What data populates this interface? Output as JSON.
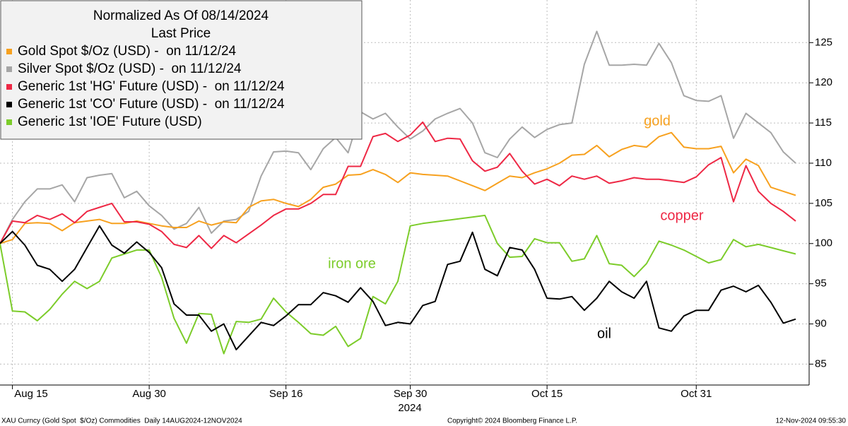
{
  "chart_data": {
    "type": "line",
    "legend_title": [
      "Normalized As Of 08/14/2024",
      "Last Price"
    ],
    "legend_position": "upper left",
    "grid": true,
    "categories": [
      null,
      "Aug 15",
      null,
      null,
      null,
      null,
      null,
      null,
      null,
      null,
      null,
      null,
      "Aug 30",
      null,
      null,
      null,
      null,
      null,
      null,
      null,
      null,
      null,
      null,
      "Sep 16",
      null,
      null,
      null,
      null,
      null,
      null,
      null,
      null,
      null,
      "Sep 30",
      null,
      null,
      null,
      null,
      null,
      null,
      null,
      null,
      null,
      null,
      "Oct 15",
      null,
      null,
      null,
      null,
      null,
      null,
      null,
      null,
      null,
      null,
      null,
      "Oct 31",
      null,
      null,
      null,
      null,
      null,
      null,
      null,
      null
    ],
    "x_year_label": "2024",
    "ylim": [
      82.4,
      130.3
    ],
    "yticks": [
      85,
      90,
      95,
      100,
      105,
      110,
      115,
      120,
      125
    ],
    "series": [
      {
        "name": "Gold Spot $/Oz (USD) -  on 11/12/24",
        "color": "#f7a11f",
        "values": [
          100,
          100.5,
          102.5,
          102.6,
          102.5,
          101.6,
          102.6,
          102.8,
          103.0,
          102.5,
          102.5,
          102.8,
          102.5,
          102.2,
          102.0,
          102.0,
          102.8,
          102.3,
          102.7,
          102.6,
          104.5,
          105.3,
          105.5,
          105.0,
          104.6,
          105.5,
          107.0,
          107.4,
          108.5,
          108.6,
          109.2,
          108.6,
          107.6,
          108.8,
          108.6,
          108.5,
          108.4,
          107.8,
          107.2,
          106.6,
          107.5,
          108.4,
          108.2,
          108.8,
          109.3,
          110.0,
          111.0,
          111.1,
          112.2,
          110.8,
          111.7,
          112.2,
          112.0,
          113.3,
          113.8,
          112.0,
          111.8,
          111.8,
          112.1,
          108.8,
          110.5,
          109.7,
          107.0,
          106.5,
          106.0
        ]
      },
      {
        "name": "Silver Spot $/Oz (USD) -  on 11/12/24",
        "color": "#a6a6a6",
        "values": [
          100,
          103,
          105.2,
          106.8,
          106.8,
          107.3,
          105.2,
          108.2,
          108.5,
          108.7,
          105.7,
          106.5,
          104.7,
          103.5,
          101.8,
          102.5,
          104.5,
          101.3,
          102.8,
          103,
          104,
          108.4,
          111.4,
          111.5,
          111.3,
          109.2,
          111.8,
          113.2,
          111.3,
          116.4,
          115.5,
          116.2,
          114.5,
          113,
          114,
          115.5,
          116.2,
          116.8,
          115,
          111.3,
          110.7,
          113,
          114.5,
          113.2,
          114.2,
          114.8,
          115,
          122.3,
          126.4,
          122.2,
          122.2,
          122.3,
          122.2,
          124.9,
          122.5,
          118.4,
          117.8,
          117.7,
          118.4,
          113.1,
          116.2,
          115,
          113.8,
          111.4,
          110.0
        ]
      },
      {
        "name": "Generic 1st 'HG' Future (USD) -  on 11/12/24",
        "color": "#ee2845",
        "values": [
          100,
          102.8,
          102.6,
          103.5,
          103,
          103.7,
          102.6,
          104,
          104.5,
          105,
          102.7,
          102.7,
          102.4,
          101.5,
          99.9,
          99.5,
          101,
          99.4,
          101,
          100.1,
          101.2,
          102.3,
          103.5,
          104.3,
          104.3,
          105.0,
          106.1,
          106.1,
          109.6,
          109.6,
          113.3,
          113.7,
          112.7,
          113.5,
          115.1,
          112.7,
          113.1,
          113,
          110.3,
          109,
          109.5,
          111.2,
          109,
          107.4,
          108,
          107.2,
          108.4,
          108,
          108.4,
          107.5,
          107.8,
          108.2,
          108.0,
          108.0,
          107.8,
          107.6,
          108.3,
          109.8,
          110.7,
          105.2,
          109.7,
          106.5,
          105,
          104,
          102.8
        ]
      },
      {
        "name": "Generic 1st 'CO' Future (USD) -  on 11/12/24",
        "color": "#000000",
        "values": [
          100,
          101.5,
          99.8,
          97.3,
          96.8,
          95.3,
          96.8,
          99.5,
          102.2,
          99.8,
          98.8,
          100.2,
          98.9,
          97,
          92.5,
          91.1,
          91.1,
          89.1,
          90.0,
          86.8,
          88.5,
          90.2,
          89.8,
          91.0,
          92.4,
          92.4,
          93.9,
          93.5,
          92.7,
          94.5,
          92.8,
          89.8,
          90.2,
          90.0,
          92.3,
          92.8,
          97.4,
          97.8,
          101.4,
          96.8,
          96,
          99.5,
          99.2,
          96.8,
          93.2,
          93.1,
          93.4,
          91.7,
          93.2,
          95.3,
          94.0,
          93.2,
          95.3,
          89.5,
          89.1,
          91,
          91.7,
          91.7,
          94.2,
          94.7,
          94,
          94.8,
          92.7,
          90.1,
          90.6
        ]
      },
      {
        "name": "Generic 1st 'IOE' Future (USD)",
        "color": "#7ccc2a",
        "values": [
          100,
          91.6,
          91.5,
          90.4,
          91.8,
          93.7,
          95.3,
          94.4,
          95.3,
          98.2,
          98.7,
          99.2,
          99.2,
          95.8,
          90.7,
          87.6,
          91.3,
          91.2,
          86.3,
          90.3,
          90.2,
          90.6,
          93.2,
          91.5,
          90.2,
          88.8,
          88.6,
          89.7,
          87.2,
          88.2,
          93.4,
          92.5,
          95.3,
          102.2,
          102.5,
          102.7,
          102.9,
          103.1,
          103.3,
          103.5,
          100,
          98.3,
          98.4,
          100.6,
          100.1,
          100.1,
          97.8,
          98.1,
          101,
          97.5,
          97.3,
          95.9,
          97.5,
          100.3,
          99.8,
          99.2,
          98.4,
          97.6,
          98,
          100.5,
          99.6,
          99.9,
          99.5,
          99.1,
          98.7
        ]
      }
    ],
    "annotations": [
      {
        "text": "gold",
        "color": "#f7a11f"
      },
      {
        "text": "copper",
        "color": "#ee2845"
      },
      {
        "text": "iron ore",
        "color": "#7ccc2a"
      },
      {
        "text": "oil",
        "color": "#000000"
      }
    ],
    "footer": {
      "left": "XAU Curncy (Gold Spot  $/Oz) Commodities  Daily 14AUG2024-12NOV2024",
      "center": "Copyright© 2024 Bloomberg Finance L.P.",
      "right": "12-Nov-2024 09:55:30"
    }
  }
}
